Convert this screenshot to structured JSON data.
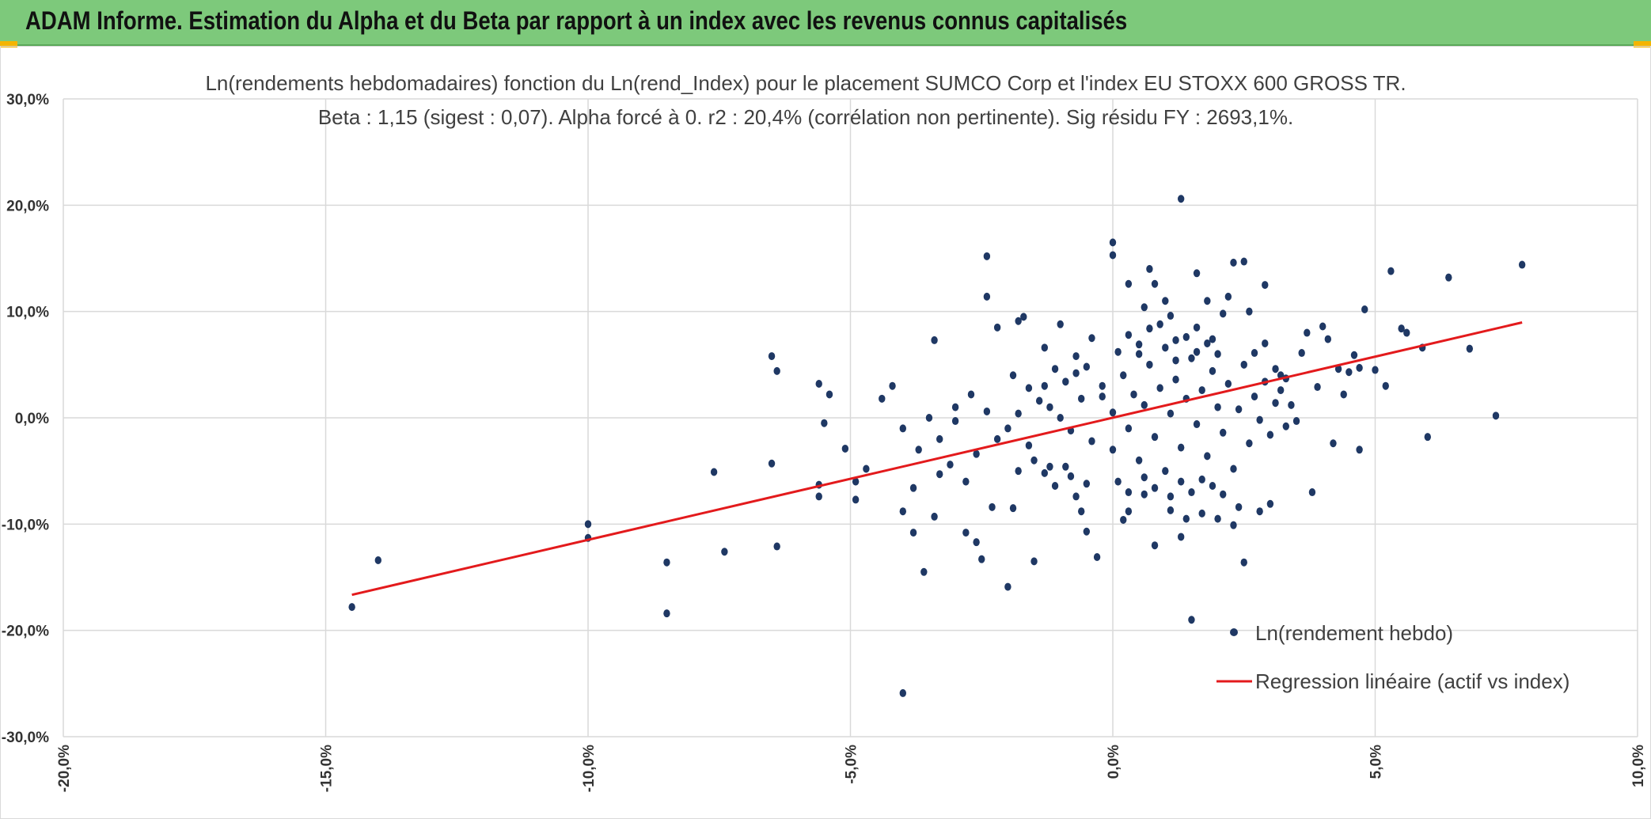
{
  "header": {
    "title": "ADAM Informe. Estimation du Alpha et du Beta par rapport à un index avec les revenus connus capitalisés"
  },
  "colors": {
    "header_bg": "#7dc97b",
    "points": "#1f3864",
    "regression": "#e31a1c",
    "grid": "#d9d9d9",
    "accent": "#f4b400"
  },
  "chart_data": {
    "type": "scatter",
    "title_line1": "Ln(rendements hebdomadaires) fonction du Ln(rend_Index) pour le placement SUMCO Corp et l'index EU STOXX 600 GROSS TR.",
    "title_line2": "Beta : 1,15 (sigest : 0,07). Alpha forcé à 0. r2 : 20,4% (corrélation non pertinente). Sig résidu FY : 2693,1%.",
    "xlim": [
      -0.2,
      0.1
    ],
    "ylim": [
      -0.3,
      0.3
    ],
    "x_ticks": [
      -0.2,
      -0.15,
      -0.1,
      -0.05,
      0.0,
      0.05,
      0.1
    ],
    "x_tick_labels": [
      "-20,0%",
      "-15,0%",
      "-10,0%",
      "-5,0%",
      "0,0%",
      "5,0%",
      "10,0%"
    ],
    "y_ticks": [
      0.3,
      0.2,
      0.1,
      0.0,
      -0.1,
      -0.2,
      -0.3
    ],
    "y_tick_labels": [
      "30,0%",
      "20,0%",
      "10,0%",
      "0,0%",
      "-10,0%",
      "-20,0%",
      "-30,0%"
    ],
    "grid": true,
    "legend_position": "bottom-right",
    "series": [
      {
        "name": "Ln(rendement hebdo)",
        "kind": "scatter",
        "points": [
          [
            -0.145,
            -0.178
          ],
          [
            -0.14,
            -0.134
          ],
          [
            -0.1,
            -0.1
          ],
          [
            -0.1,
            -0.113
          ],
          [
            -0.085,
            -0.136
          ],
          [
            -0.085,
            -0.184
          ],
          [
            -0.074,
            -0.126
          ],
          [
            -0.076,
            -0.051
          ],
          [
            -0.065,
            -0.043
          ],
          [
            -0.064,
            -0.121
          ],
          [
            -0.065,
            0.058
          ],
          [
            -0.064,
            0.044
          ],
          [
            -0.056,
            0.032
          ],
          [
            -0.054,
            0.022
          ],
          [
            -0.055,
            -0.005
          ],
          [
            -0.056,
            -0.063
          ],
          [
            -0.056,
            -0.074
          ],
          [
            -0.051,
            -0.029
          ],
          [
            -0.049,
            -0.06
          ],
          [
            -0.049,
            -0.077
          ],
          [
            -0.047,
            -0.048
          ],
          [
            -0.044,
            0.018
          ],
          [
            -0.042,
            0.03
          ],
          [
            -0.04,
            -0.088
          ],
          [
            -0.04,
            -0.259
          ],
          [
            -0.038,
            -0.108
          ],
          [
            -0.036,
            -0.145
          ],
          [
            -0.034,
            0.073
          ],
          [
            -0.034,
            -0.093
          ],
          [
            -0.033,
            -0.053
          ],
          [
            -0.03,
            -0.003
          ],
          [
            -0.028,
            -0.108
          ],
          [
            -0.026,
            -0.117
          ],
          [
            -0.025,
            -0.133
          ],
          [
            -0.024,
            0.152
          ],
          [
            -0.024,
            0.114
          ],
          [
            -0.023,
            -0.084
          ],
          [
            -0.022,
            0.085
          ],
          [
            -0.02,
            -0.159
          ],
          [
            -0.019,
            -0.085
          ],
          [
            -0.018,
            0.091
          ],
          [
            -0.017,
            0.095
          ],
          [
            -0.015,
            -0.135
          ],
          [
            -0.013,
            0.066
          ],
          [
            -0.012,
            -0.046
          ],
          [
            -0.01,
            0.088
          ],
          [
            -0.008,
            -0.055
          ],
          [
            -0.007,
            0.042
          ],
          [
            -0.006,
            -0.088
          ],
          [
            -0.005,
            -0.107
          ],
          [
            -0.004,
            0.075
          ],
          [
            -0.003,
            -0.131
          ],
          [
            -0.002,
            0.02
          ],
          [
            0.0,
            0.165
          ],
          [
            0.0,
            0.153
          ],
          [
            0.002,
            -0.096
          ],
          [
            0.003,
            -0.088
          ],
          [
            0.003,
            0.126
          ],
          [
            0.005,
            0.069
          ],
          [
            0.006,
            -0.072
          ],
          [
            0.006,
            0.104
          ],
          [
            0.007,
            0.14
          ],
          [
            0.008,
            0.126
          ],
          [
            0.008,
            -0.12
          ],
          [
            0.009,
            0.088
          ],
          [
            0.01,
            0.11
          ],
          [
            0.011,
            0.096
          ],
          [
            0.011,
            -0.087
          ],
          [
            0.012,
            0.073
          ],
          [
            0.013,
            0.206
          ],
          [
            0.013,
            -0.112
          ],
          [
            0.014,
            -0.095
          ],
          [
            0.015,
            -0.19
          ],
          [
            0.016,
            0.085
          ],
          [
            0.016,
            0.136
          ],
          [
            0.017,
            -0.09
          ],
          [
            0.018,
            0.11
          ],
          [
            0.019,
            0.074
          ],
          [
            0.02,
            -0.095
          ],
          [
            0.021,
            0.098
          ],
          [
            0.022,
            0.114
          ],
          [
            0.023,
            -0.101
          ],
          [
            0.023,
            0.146
          ],
          [
            0.024,
            -0.084
          ],
          [
            0.025,
            0.147
          ],
          [
            0.025,
            -0.136
          ],
          [
            0.026,
            0.1
          ],
          [
            0.027,
            0.061
          ],
          [
            0.028,
            -0.088
          ],
          [
            0.029,
            0.125
          ],
          [
            0.029,
            0.07
          ],
          [
            0.03,
            -0.081
          ],
          [
            0.031,
            0.046
          ],
          [
            0.032,
            0.04
          ],
          [
            0.033,
            0.037
          ],
          [
            0.034,
            0.012
          ],
          [
            0.035,
            -0.003
          ],
          [
            0.036,
            0.061
          ],
          [
            0.037,
            0.08
          ],
          [
            0.038,
            -0.07
          ],
          [
            0.039,
            0.029
          ],
          [
            0.04,
            0.086
          ],
          [
            0.041,
            0.074
          ],
          [
            0.042,
            -0.024
          ],
          [
            0.043,
            0.046
          ],
          [
            0.044,
            0.022
          ],
          [
            0.045,
            0.043
          ],
          [
            0.046,
            0.059
          ],
          [
            0.047,
            0.047
          ],
          [
            0.047,
            -0.03
          ],
          [
            0.048,
            0.102
          ],
          [
            0.05,
            0.045
          ],
          [
            0.052,
            0.03
          ],
          [
            0.053,
            0.138
          ],
          [
            0.055,
            0.084
          ],
          [
            0.056,
            0.08
          ],
          [
            0.059,
            0.066
          ],
          [
            0.06,
            -0.018
          ],
          [
            0.064,
            0.132
          ],
          [
            0.068,
            0.065
          ],
          [
            0.073,
            0.002
          ],
          [
            0.078,
            0.144
          ],
          [
            -0.012,
            0.01
          ],
          [
            -0.01,
            0.0
          ],
          [
            -0.008,
            -0.012
          ],
          [
            -0.006,
            0.018
          ],
          [
            -0.004,
            -0.022
          ],
          [
            -0.002,
            0.03
          ],
          [
            0.0,
            -0.03
          ],
          [
            0.0,
            0.005
          ],
          [
            0.002,
            0.04
          ],
          [
            0.003,
            -0.01
          ],
          [
            0.004,
            0.022
          ],
          [
            0.005,
            -0.04
          ],
          [
            0.006,
            0.012
          ],
          [
            0.007,
            0.05
          ],
          [
            0.008,
            -0.018
          ],
          [
            0.009,
            0.028
          ],
          [
            0.01,
            -0.05
          ],
          [
            0.011,
            0.004
          ],
          [
            0.012,
            0.036
          ],
          [
            0.013,
            -0.028
          ],
          [
            0.014,
            0.018
          ],
          [
            0.015,
            0.056
          ],
          [
            0.016,
            -0.006
          ],
          [
            0.017,
            0.026
          ],
          [
            0.018,
            -0.036
          ],
          [
            0.019,
            0.044
          ],
          [
            0.02,
            0.01
          ],
          [
            0.021,
            -0.014
          ],
          [
            0.022,
            0.032
          ],
          [
            0.023,
            -0.048
          ],
          [
            0.024,
            0.008
          ],
          [
            0.025,
            0.05
          ],
          [
            0.026,
            -0.024
          ],
          [
            0.027,
            0.02
          ],
          [
            0.028,
            -0.002
          ],
          [
            0.029,
            0.034
          ],
          [
            0.03,
            -0.016
          ],
          [
            0.031,
            0.014
          ],
          [
            0.032,
            0.026
          ],
          [
            0.033,
            -0.008
          ],
          [
            -0.02,
            -0.01
          ],
          [
            -0.018,
            0.004
          ],
          [
            -0.016,
            -0.026
          ],
          [
            -0.014,
            0.016
          ],
          [
            -0.015,
            -0.04
          ],
          [
            -0.016,
            0.028
          ],
          [
            -0.018,
            -0.05
          ],
          [
            -0.019,
            0.04
          ],
          [
            -0.022,
            -0.02
          ],
          [
            -0.024,
            0.006
          ],
          [
            -0.026,
            -0.034
          ],
          [
            -0.027,
            0.022
          ],
          [
            -0.028,
            -0.06
          ],
          [
            -0.03,
            0.01
          ],
          [
            -0.031,
            -0.044
          ],
          [
            -0.033,
            -0.02
          ],
          [
            -0.035,
            0.0
          ],
          [
            -0.037,
            -0.03
          ],
          [
            -0.038,
            -0.066
          ],
          [
            -0.04,
            -0.01
          ],
          [
            0.001,
            0.062
          ],
          [
            0.003,
            0.078
          ],
          [
            0.005,
            0.06
          ],
          [
            0.007,
            0.084
          ],
          [
            0.01,
            0.066
          ],
          [
            0.012,
            0.054
          ],
          [
            0.014,
            0.076
          ],
          [
            0.016,
            0.062
          ],
          [
            0.018,
            0.07
          ],
          [
            0.02,
            0.06
          ],
          [
            0.001,
            -0.06
          ],
          [
            0.003,
            -0.07
          ],
          [
            0.006,
            -0.056
          ],
          [
            0.008,
            -0.066
          ],
          [
            0.011,
            -0.074
          ],
          [
            0.013,
            -0.06
          ],
          [
            0.015,
            -0.07
          ],
          [
            0.017,
            -0.058
          ],
          [
            0.019,
            -0.064
          ],
          [
            0.021,
            -0.072
          ],
          [
            -0.005,
            0.048
          ],
          [
            -0.007,
            0.058
          ],
          [
            -0.009,
            0.034
          ],
          [
            -0.011,
            0.046
          ],
          [
            -0.013,
            0.03
          ],
          [
            -0.005,
            -0.062
          ],
          [
            -0.007,
            -0.074
          ],
          [
            -0.009,
            -0.046
          ],
          [
            -0.011,
            -0.064
          ],
          [
            -0.013,
            -0.052
          ]
        ]
      },
      {
        "name": "Regression linéaire (actif vs index)",
        "kind": "line",
        "points": [
          [
            -0.145,
            -0.1665
          ],
          [
            0.078,
            0.0897
          ]
        ]
      }
    ]
  }
}
